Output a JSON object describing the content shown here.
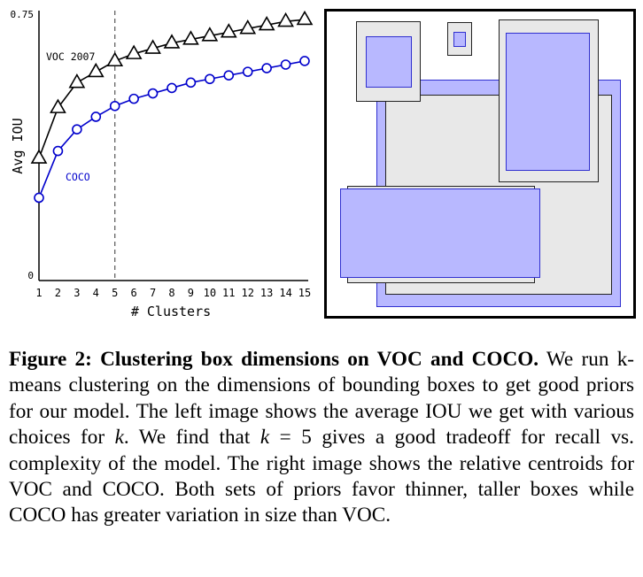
{
  "chart_data": {
    "type": "line",
    "title": "",
    "xlabel": "# Clusters",
    "ylabel": "Avg IOU",
    "x": [
      1,
      2,
      3,
      4,
      5,
      6,
      7,
      8,
      9,
      10,
      11,
      12,
      13,
      14,
      15
    ],
    "x_tick_labels": [
      "1",
      "2",
      "3",
      "4",
      "5",
      "6",
      "7",
      "8",
      "9",
      "10",
      "11",
      "12",
      "13",
      "14",
      "15"
    ],
    "y_tick_labels": [
      "0",
      "0.75"
    ],
    "ylim": [
      0,
      0.75
    ],
    "marker_line_x": 5,
    "series": [
      {
        "name": "VOC 2007",
        "marker": "triangle",
        "color": "#000000",
        "values": [
          0.34,
          0.48,
          0.55,
          0.58,
          0.61,
          0.63,
          0.645,
          0.66,
          0.67,
          0.68,
          0.69,
          0.7,
          0.71,
          0.72,
          0.725
        ]
      },
      {
        "name": "COCO",
        "marker": "circle",
        "color": "#0000cc",
        "values": [
          0.23,
          0.36,
          0.42,
          0.455,
          0.485,
          0.505,
          0.52,
          0.535,
          0.55,
          0.56,
          0.57,
          0.58,
          0.59,
          0.6,
          0.61
        ]
      }
    ]
  },
  "figure": {
    "label": "Figure 2:",
    "heading": "Clustering box dimensions on VOC and COCO.",
    "seg1": " We run k-means clustering on the dimensions of bounding boxes to get good priors for our model. The left image shows the average IOU we get with various choices for ",
    "k1": "k",
    "seg2": ". We find that ",
    "k2": "k",
    "eq": " = 5",
    "seg3": " gives a good tradeoff for recall vs. complexity of the model. The right image shows the relative centroids for VOC and COCO. Both sets of priors favor thinner, taller boxes while COCO has greater variation in size than VOC."
  },
  "colors": {
    "voc_fill": "#e8e8e8",
    "coco_fill": "#b8b8ff",
    "coco_stroke": "#3030d0"
  }
}
